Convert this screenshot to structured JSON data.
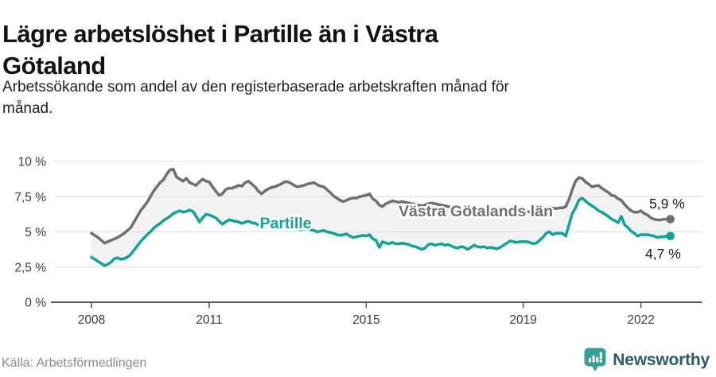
{
  "header": {
    "title": "Lägre arbetslöshet i Partille än i Västra Götaland",
    "title_lines": [
      "Lägre arbetslöshet i Partille än i Västra",
      "Götaland"
    ],
    "subtitle": "Arbetssökande som andel av den registerbaserade arbetskraften månad för månad.",
    "subtitle_lines": [
      "Arbetssökande som andel av den registerbaserade arbetskraften månad för",
      "månad."
    ]
  },
  "footer": {
    "source": "Källa: Arbetsförmedlingen",
    "brand": "Newsworthy",
    "brand_icon": "bar-chart-speech-bubble",
    "brand_color": "#37a096",
    "brand_text_color": "#2c5b68"
  },
  "chart_data": {
    "type": "line",
    "title": "Lägre arbetslöshet i Partille än i Västra Götaland",
    "subtitle": "Arbetssökande som andel av den registerbaserade arbetskraften månad för månad.",
    "unit": "%",
    "freq": "monthly",
    "x_start": "2008-01",
    "x_end": "2022-10",
    "ylim": [
      0,
      10
    ],
    "grid": "horizontal",
    "fill_between_color": "#f2f2f2",
    "axis_color": "#58585a",
    "gridline_color": "#e3e3e3",
    "tick_label_color": "#3d3d3f",
    "x_ticks": [
      2008,
      2011,
      2015,
      2019,
      2022
    ],
    "y_ticks": [
      {
        "value": 0,
        "label": "0 %"
      },
      {
        "value": 2.5,
        "label": "2,5 %"
      },
      {
        "value": 5,
        "label": "5 %"
      },
      {
        "value": 7.5,
        "label": "7,5 %"
      },
      {
        "value": 10,
        "label": "10 %"
      }
    ],
    "series": [
      {
        "name": "Västra Götalands län",
        "color": "#6e6f72",
        "end_label": "5,9 %",
        "end_value": 5.9,
        "values": [
          4.9,
          4.75,
          4.6,
          4.4,
          4.2,
          4.3,
          4.4,
          4.5,
          4.6,
          4.75,
          4.9,
          5.1,
          5.3,
          5.7,
          6.1,
          6.5,
          6.8,
          7.1,
          7.5,
          7.9,
          8.2,
          8.5,
          8.7,
          9.1,
          9.4,
          9.45,
          8.9,
          8.75,
          8.6,
          8.8,
          8.5,
          8.4,
          8.3,
          8.55,
          8.75,
          8.6,
          8.55,
          8.2,
          7.9,
          7.6,
          7.7,
          8.0,
          8.1,
          8.1,
          8.2,
          8.3,
          8.25,
          8.5,
          8.6,
          8.4,
          8.2,
          7.9,
          7.7,
          7.9,
          8.05,
          8.15,
          8.2,
          8.3,
          8.4,
          8.55,
          8.55,
          8.45,
          8.3,
          8.2,
          8.25,
          8.3,
          8.4,
          8.45,
          8.5,
          8.35,
          8.25,
          8.2,
          8.0,
          7.8,
          7.55,
          7.4,
          7.25,
          7.15,
          7.25,
          7.35,
          7.4,
          7.4,
          7.5,
          7.55,
          7.6,
          7.7,
          7.35,
          7.2,
          6.9,
          6.8,
          7.0,
          7.1,
          7.2,
          7.15,
          7.1,
          7.15,
          7.1,
          7.05,
          7.0,
          6.95,
          6.9,
          6.85,
          6.9,
          7.0,
          7.05,
          7.0,
          6.95,
          6.9,
          6.85,
          6.8,
          6.75,
          6.7,
          6.65,
          6.7,
          6.75,
          6.7,
          6.65,
          6.6,
          6.6,
          6.65,
          6.6,
          6.55,
          6.5,
          6.45,
          6.4,
          6.45,
          6.5,
          6.45,
          6.4,
          6.35,
          6.4,
          6.45,
          6.5,
          6.45,
          6.4,
          6.35,
          6.4,
          6.5,
          6.6,
          6.7,
          6.75,
          6.7,
          6.65,
          6.7,
          6.7,
          6.8,
          7.3,
          8.0,
          8.6,
          8.85,
          8.8,
          8.55,
          8.4,
          8.2,
          8.25,
          8.3,
          8.1,
          7.95,
          7.8,
          7.6,
          7.55,
          7.35,
          7.25,
          6.95,
          6.7,
          6.5,
          6.4,
          6.4,
          6.5,
          6.3,
          6.2,
          6.0,
          5.9,
          5.85,
          5.85,
          5.9,
          5.9,
          5.9
        ]
      },
      {
        "name": "Partille",
        "color": "#13a298",
        "end_label": "4,7 %",
        "end_value": 4.7,
        "values": [
          3.2,
          3.05,
          2.9,
          2.75,
          2.6,
          2.7,
          2.85,
          3.1,
          3.15,
          3.05,
          3.1,
          3.2,
          3.4,
          3.7,
          4.0,
          4.3,
          4.55,
          4.8,
          5.0,
          5.25,
          5.45,
          5.6,
          5.8,
          5.95,
          6.1,
          6.3,
          6.4,
          6.5,
          6.4,
          6.45,
          6.55,
          6.45,
          6.1,
          5.7,
          6.0,
          6.25,
          6.2,
          6.1,
          6.0,
          5.75,
          5.55,
          5.7,
          5.85,
          5.8,
          5.75,
          5.7,
          5.6,
          5.7,
          5.75,
          5.65,
          5.6,
          5.5,
          5.45,
          5.5,
          5.55,
          5.45,
          5.4,
          5.35,
          5.4,
          5.45,
          5.4,
          5.35,
          5.3,
          5.2,
          5.15,
          5.2,
          5.25,
          5.15,
          5.1,
          5.0,
          5.05,
          5.1,
          5.0,
          4.95,
          4.9,
          4.8,
          4.75,
          4.8,
          4.85,
          4.7,
          4.6,
          4.65,
          4.7,
          4.75,
          4.7,
          4.8,
          4.5,
          4.4,
          3.9,
          4.3,
          4.2,
          4.15,
          4.25,
          4.15,
          4.15,
          4.2,
          4.15,
          4.1,
          4.0,
          3.95,
          3.85,
          3.75,
          3.85,
          4.1,
          4.15,
          4.05,
          4.1,
          4.15,
          4.05,
          4.1,
          4.0,
          3.9,
          3.85,
          3.95,
          3.9,
          3.75,
          3.9,
          4.05,
          3.95,
          3.9,
          3.95,
          3.85,
          3.9,
          3.85,
          3.8,
          3.9,
          4.05,
          4.2,
          4.35,
          4.3,
          4.25,
          4.3,
          4.3,
          4.3,
          4.25,
          4.15,
          4.2,
          4.4,
          4.6,
          4.9,
          5.0,
          4.8,
          4.9,
          4.9,
          4.9,
          4.7,
          5.5,
          6.3,
          6.7,
          7.25,
          7.4,
          7.2,
          7.0,
          6.85,
          6.7,
          6.5,
          6.4,
          6.25,
          6.1,
          5.9,
          5.8,
          5.65,
          6.1,
          5.5,
          5.3,
          5.05,
          4.9,
          4.7,
          4.8,
          4.8,
          4.8,
          4.75,
          4.7,
          4.6,
          4.65,
          4.65,
          4.7,
          4.7
        ]
      }
    ]
  }
}
